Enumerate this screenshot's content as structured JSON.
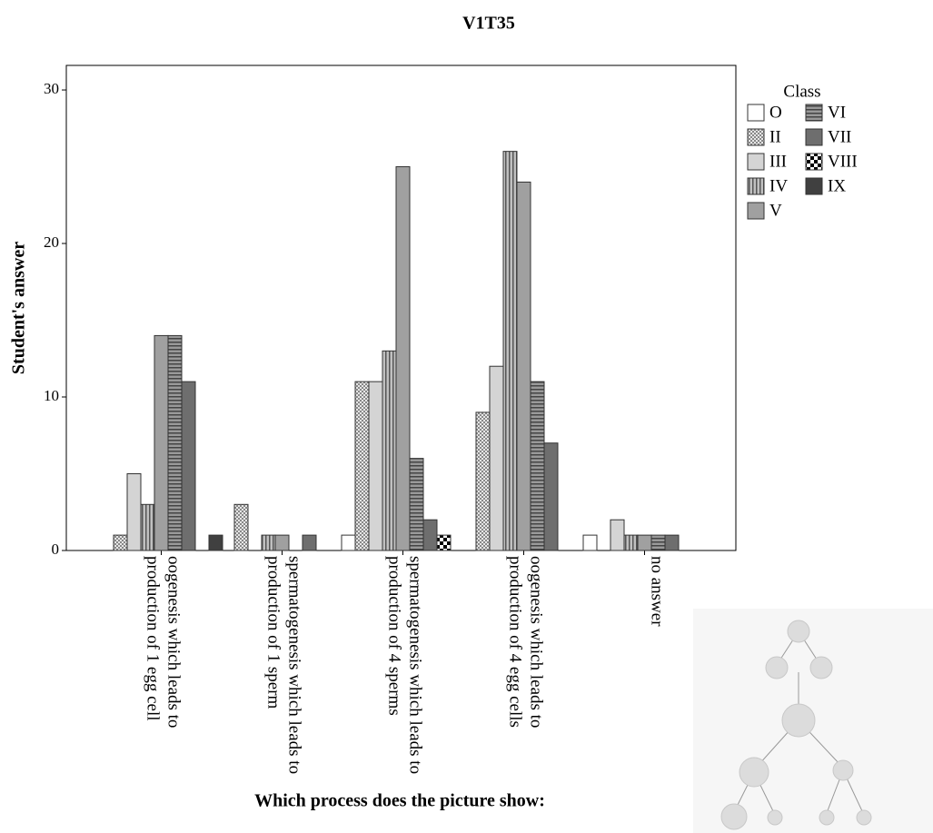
{
  "chart_data": {
    "type": "bar",
    "title": "V1T35",
    "x_label": "Which process does the picture show:",
    "y_label": "Student's answer",
    "legend_title": "Class",
    "categories": [
      "oogenesis which leads to production of 1 egg cell",
      "spermatogenesis which leads to production of 1 sperm",
      "spermatogenesis which leads to production of 4 sperms",
      "oogenesis which leads to production of 4 egg cells",
      "no answer"
    ],
    "series": [
      {
        "name": "O",
        "color": "#ffffff",
        "pattern": "none",
        "values": [
          0,
          0,
          1,
          0,
          1
        ]
      },
      {
        "name": "II",
        "color": "#d9d9d9",
        "pattern": "dots",
        "values": [
          1,
          3,
          11,
          9,
          0
        ]
      },
      {
        "name": "III",
        "color": "#d4d4d4",
        "pattern": "none",
        "values": [
          5,
          0,
          11,
          12,
          2
        ]
      },
      {
        "name": "IV",
        "color": "#b0b0b0",
        "pattern": "vlines",
        "values": [
          3,
          1,
          13,
          26,
          1
        ]
      },
      {
        "name": "V",
        "color": "#a0a0a0",
        "pattern": "none",
        "values": [
          14,
          1,
          25,
          24,
          1
        ]
      },
      {
        "name": "VI",
        "color": "#8c8c8c",
        "pattern": "hlines",
        "values": [
          14,
          0,
          6,
          11,
          1
        ]
      },
      {
        "name": "VII",
        "color": "#6e6e6e",
        "pattern": "none",
        "values": [
          11,
          1,
          2,
          7,
          1
        ]
      },
      {
        "name": "VIII",
        "color": "#ffffff",
        "pattern": "checker",
        "values": [
          0,
          0,
          1,
          0,
          0
        ]
      },
      {
        "name": "IX",
        "color": "#404040",
        "pattern": "none",
        "values": [
          1,
          0,
          0,
          0,
          0
        ]
      }
    ],
    "ylim": [
      0,
      31.6
    ],
    "yticks": [
      0,
      10,
      20,
      30
    ]
  }
}
